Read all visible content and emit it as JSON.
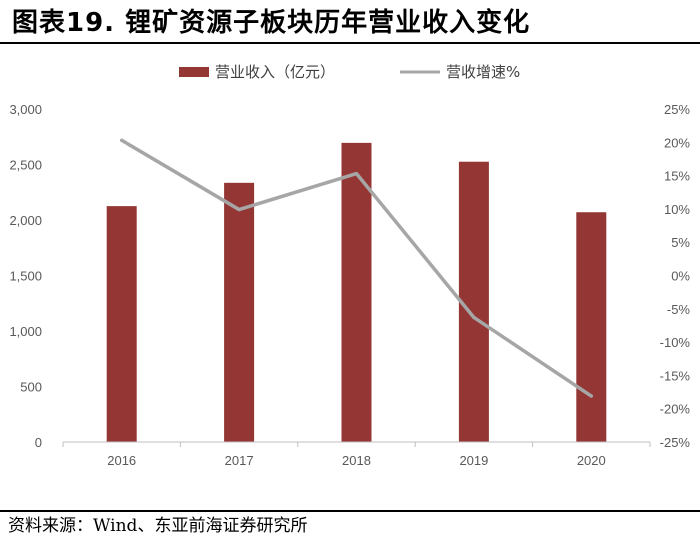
{
  "header": {
    "title": "图表19. 锂矿资源子板块历年营业收入变化"
  },
  "footer": {
    "source": "资料来源：Wind、东亚前海证券研究所"
  },
  "colors": {
    "bar": "#943634",
    "line": "#a6a6a6",
    "axis": "#bfbfbf",
    "tick": "#595959"
  },
  "chart_data": {
    "type": "bar",
    "categories": [
      "2016",
      "2017",
      "2018",
      "2019",
      "2020"
    ],
    "series": [
      {
        "name": "营业收入（亿元）",
        "type": "bar",
        "axis": "left",
        "values": [
          2125,
          2335,
          2695,
          2525,
          2070
        ]
      },
      {
        "name": "营收增速%",
        "type": "line",
        "axis": "right",
        "values": [
          20.3,
          9.9,
          15.3,
          -6.3,
          -18.1
        ]
      }
    ],
    "y_left": {
      "ylim": [
        0,
        3000
      ],
      "ticks": [
        0,
        500,
        1000,
        1500,
        2000,
        2500,
        3000
      ],
      "tick_labels": [
        "0",
        "500",
        "1,000",
        "1,500",
        "2,000",
        "2,500",
        "3,000"
      ]
    },
    "y_right": {
      "ylim": [
        -25,
        25
      ],
      "ticks": [
        -25,
        -20,
        -15,
        -10,
        -5,
        0,
        5,
        10,
        15,
        20,
        25
      ],
      "tick_labels": [
        "-25%",
        "-20%",
        "-15%",
        "-10%",
        "-5%",
        "0%",
        "5%",
        "10%",
        "15%",
        "20%",
        "25%"
      ]
    },
    "legend_position": "top-center",
    "grid": false
  }
}
